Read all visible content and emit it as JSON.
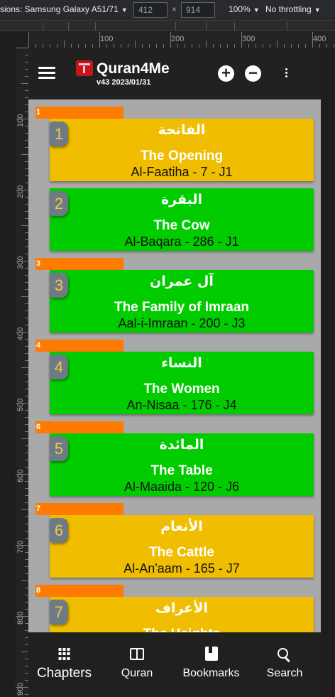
{
  "devtools": {
    "device": "sions: Samsung Galaxy A51/71",
    "width": "412",
    "height": "914",
    "zoom": "100%",
    "throttle": "No throttling",
    "ruler_h": [
      "100",
      "200",
      "300",
      "400"
    ],
    "ruler_v": [
      "100",
      "200",
      "300",
      "400",
      "500",
      "600",
      "700",
      "800",
      "900"
    ]
  },
  "app": {
    "title": "Quran4Me",
    "version": "v43 2023/01/31"
  },
  "toolbar": {
    "zoom_in": "+",
    "zoom_out": "−"
  },
  "chapters": [
    {
      "juz": "1",
      "number": "1",
      "arabic": "الفاتحة",
      "english": "The Opening",
      "meta": "Al-Faatiha - 7 - J1",
      "color": "#f0bd00"
    },
    {
      "juz": "",
      "number": "2",
      "arabic": "البقرة",
      "english": "The Cow",
      "meta": "Al-Baqara - 286 - J1",
      "color": "#00cc00"
    },
    {
      "juz": "3",
      "number": "3",
      "arabic": "آل عمران",
      "english": "The Family of Imraan",
      "meta": "Aal-i-Imraan - 200 - J3",
      "color": "#00cc00"
    },
    {
      "juz": "4",
      "number": "4",
      "arabic": "النساء",
      "english": "The Women",
      "meta": "An-Nisaa - 176 - J4",
      "color": "#00cc00"
    },
    {
      "juz": "6",
      "number": "5",
      "arabic": "المائدة",
      "english": "The Table",
      "meta": "Al-Maaida - 120 - J6",
      "color": "#00cc00"
    },
    {
      "juz": "7",
      "number": "6",
      "arabic": "الأنعام",
      "english": "The Cattle",
      "meta": "Al-An'aam - 165 - J7",
      "color": "#f0bd00"
    },
    {
      "juz": "8",
      "number": "7",
      "arabic": "الأعراف",
      "english": "The Heights",
      "meta": "",
      "color": "#f0bd00"
    }
  ],
  "nav": {
    "chapters": "Chapters",
    "quran": "Quran",
    "bookmarks": "Bookmarks",
    "search": "Search"
  },
  "colors": {
    "juz_marker": "#ff7a00",
    "meccan": "#f0bd00",
    "medinan": "#00cc00",
    "appbar": "#212121"
  }
}
